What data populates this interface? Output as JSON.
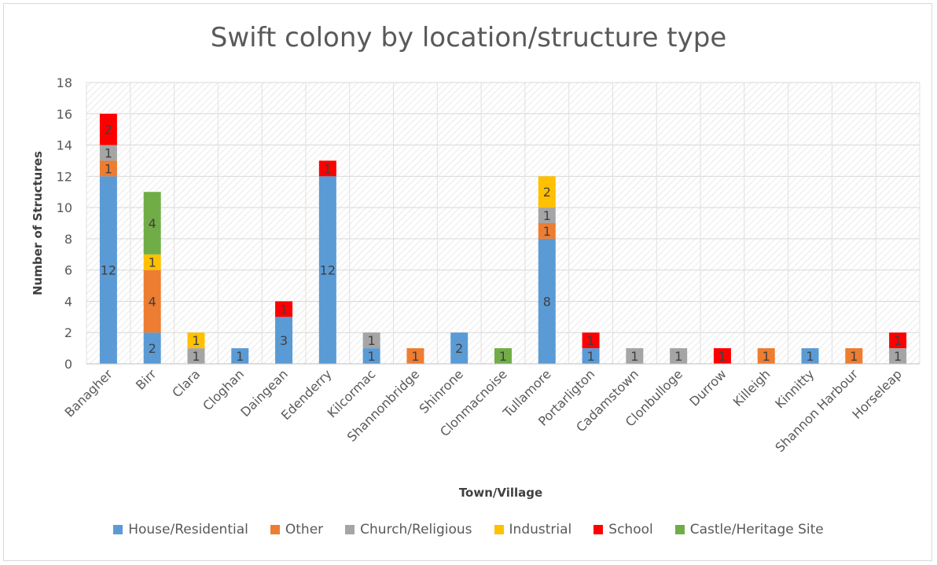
{
  "chart_data": {
    "type": "bar",
    "stacked": true,
    "title": "Swift colony by location/structure type",
    "xlabel": "Town/Village",
    "ylabel": "Number of Structures",
    "ylim": [
      0,
      18
    ],
    "yticks": [
      0,
      2,
      4,
      6,
      8,
      10,
      12,
      14,
      16,
      18
    ],
    "grid": true,
    "legend_position": "bottom",
    "categories": [
      "Banagher",
      "Birr",
      "Clara",
      "Cloghan",
      "Daingean",
      "Edenderry",
      "Kilcormac",
      "Shannonbridge",
      "Shinrone",
      "Clonmacnoise",
      "Tullamore",
      "Portarligton",
      "Cadamstown",
      "Clonbulloge",
      "Durrow",
      "Killeigh",
      "Kinnitty",
      "Shannon Harbour",
      "Horseleap"
    ],
    "series": [
      {
        "name": "House/Residential",
        "color": "#5b9bd5",
        "values": [
          12,
          2,
          0,
          1,
          3,
          12,
          1,
          0,
          2,
          0,
          8,
          1,
          0,
          0,
          0,
          0,
          1,
          0,
          0
        ]
      },
      {
        "name": "Other",
        "color": "#ed7d31",
        "values": [
          1,
          4,
          0,
          0,
          0,
          0,
          0,
          1,
          0,
          0,
          1,
          0,
          0,
          0,
          0,
          1,
          0,
          1,
          0
        ]
      },
      {
        "name": "Church/Religious",
        "color": "#a5a5a5",
        "values": [
          1,
          0,
          1,
          0,
          0,
          0,
          1,
          0,
          0,
          0,
          1,
          0,
          1,
          1,
          0,
          0,
          0,
          0,
          1
        ]
      },
      {
        "name": "Industrial",
        "color": "#ffc000",
        "values": [
          0,
          1,
          1,
          0,
          0,
          0,
          0,
          0,
          0,
          0,
          2,
          0,
          0,
          0,
          0,
          0,
          0,
          0,
          0
        ]
      },
      {
        "name": "School",
        "color": "#ff0000",
        "values": [
          2,
          0,
          0,
          0,
          1,
          1,
          0,
          0,
          0,
          0,
          0,
          1,
          0,
          0,
          1,
          0,
          0,
          0,
          1
        ]
      },
      {
        "name": "Castle/Heritage Site",
        "color": "#70ad47",
        "values": [
          0,
          4,
          0,
          0,
          0,
          0,
          0,
          0,
          0,
          1,
          0,
          0,
          0,
          0,
          0,
          0,
          0,
          0,
          0
        ]
      }
    ]
  }
}
